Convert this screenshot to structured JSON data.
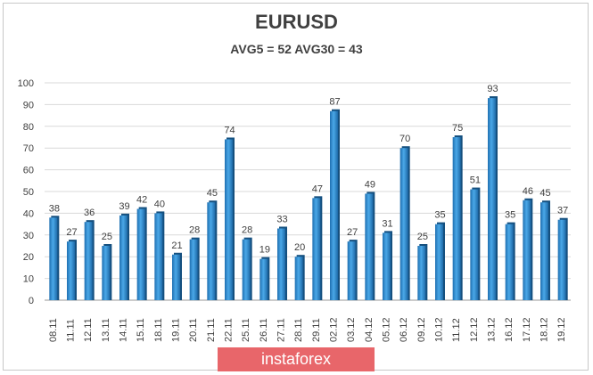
{
  "chart_data": {
    "type": "bar",
    "title": "EURUSD",
    "subtitle": "AVG5 = 52 AVG30 = 43",
    "categories": [
      "08.11",
      "11.11",
      "12.11",
      "13.11",
      "14.11",
      "15.11",
      "18.11",
      "19.11",
      "20.11",
      "21.11",
      "22.11",
      "25.11",
      "26.11",
      "27.11",
      "28.11",
      "29.11",
      "02.12",
      "03.12",
      "04.12",
      "05.12",
      "06.12",
      "09.12",
      "10.12",
      "11.12",
      "12.12",
      "13.12",
      "16.12",
      "17.12",
      "18.12",
      "19.12"
    ],
    "values": [
      38,
      27,
      36,
      25,
      39,
      42,
      40,
      21,
      28,
      45,
      74,
      28,
      19,
      33,
      20,
      47,
      87,
      27,
      49,
      31,
      70,
      25,
      35,
      75,
      51,
      93,
      35,
      46,
      45,
      37
    ],
    "yticks": [
      0,
      10,
      20,
      30,
      40,
      50,
      60,
      70,
      80,
      90,
      100
    ],
    "ylim": [
      0,
      100
    ],
    "grid": true,
    "bar_color": "#2e8fd6"
  },
  "brand": {
    "label": "instaforex",
    "color": "#e8666a"
  }
}
